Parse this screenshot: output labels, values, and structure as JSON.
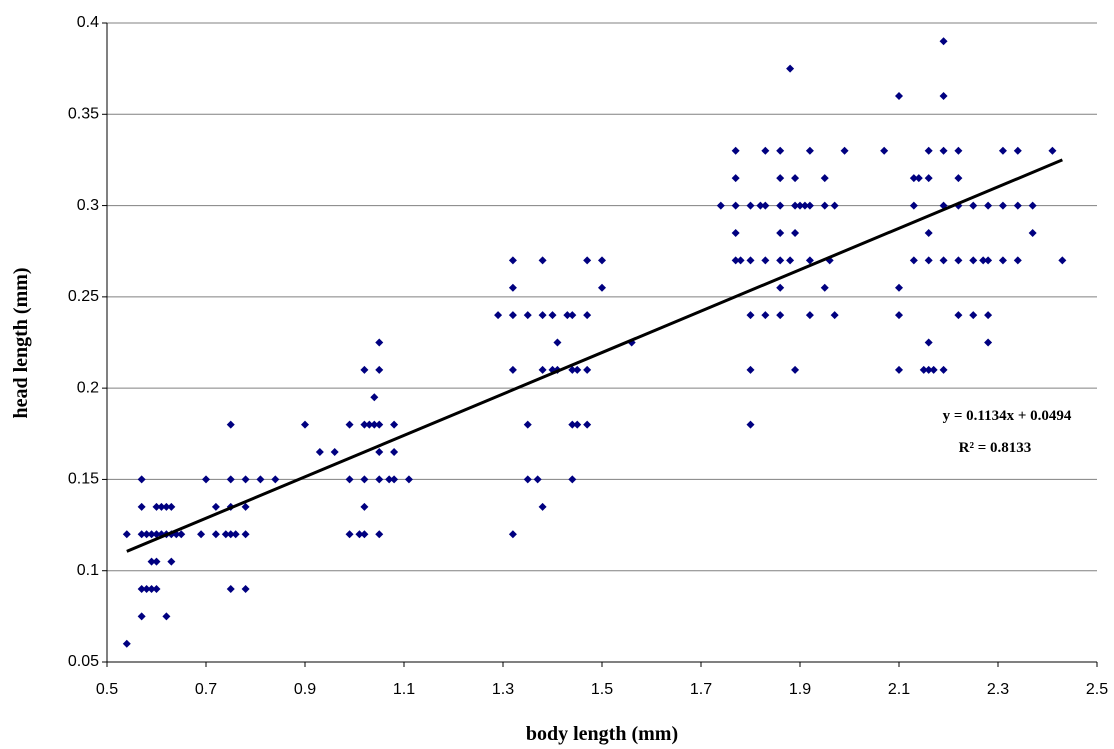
{
  "chart_data": {
    "type": "scatter",
    "x_label": "body length (mm)",
    "y_label": "head length (mm)",
    "xlim": [
      0.5,
      2.5
    ],
    "xticks": [
      0.5,
      0.7,
      0.9,
      1.1,
      1.3,
      1.5,
      1.7,
      1.9,
      2.1,
      2.3,
      2.5
    ],
    "ylim": [
      0.05,
      0.4
    ],
    "yticks": [
      0.05,
      0.1,
      0.15,
      0.2,
      0.25,
      0.3,
      0.35,
      0.4
    ],
    "grid": true,
    "series": [
      {
        "color": "#000080",
        "x": [
          0.54,
          0.54,
          0.57,
          0.57,
          0.57,
          0.57,
          0.57,
          0.58,
          0.58,
          0.59,
          0.59,
          0.59,
          0.6,
          0.6,
          0.6,
          0.6,
          0.61,
          0.61,
          0.62,
          0.62,
          0.62,
          0.63,
          0.63,
          0.63,
          0.64,
          0.65,
          0.69,
          0.7,
          0.72,
          0.72,
          0.74,
          0.75,
          0.75,
          0.75,
          0.75,
          0.75,
          0.76,
          0.78,
          0.78,
          0.78,
          0.78,
          0.81,
          0.84,
          0.9,
          0.93,
          0.96,
          0.99,
          0.99,
          0.99,
          1.01,
          1.02,
          1.02,
          1.02,
          1.02,
          1.02,
          1.03,
          1.04,
          1.04,
          1.05,
          1.05,
          1.05,
          1.05,
          1.05,
          1.05,
          1.07,
          1.08,
          1.08,
          1.08,
          1.11,
          1.29,
          1.32,
          1.32,
          1.32,
          1.32,
          1.32,
          1.35,
          1.35,
          1.35,
          1.37,
          1.38,
          1.38,
          1.38,
          1.38,
          1.4,
          1.4,
          1.41,
          1.41,
          1.43,
          1.44,
          1.44,
          1.44,
          1.44,
          1.45,
          1.45,
          1.47,
          1.47,
          1.47,
          1.47,
          1.5,
          1.5,
          1.56,
          1.74,
          1.77,
          1.77,
          1.77,
          1.77,
          1.77,
          1.78,
          1.8,
          1.8,
          1.8,
          1.8,
          1.8,
          1.82,
          1.83,
          1.83,
          1.83,
          1.83,
          1.86,
          1.86,
          1.86,
          1.86,
          1.86,
          1.86,
          1.86,
          1.88,
          1.88,
          1.89,
          1.89,
          1.89,
          1.89,
          1.9,
          1.91,
          1.92,
          1.92,
          1.92,
          1.92,
          1.95,
          1.95,
          1.95,
          1.96,
          1.97,
          1.97,
          1.99,
          2.07,
          2.1,
          2.1,
          2.1,
          2.1,
          2.13,
          2.13,
          2.13,
          2.14,
          2.15,
          2.16,
          2.16,
          2.16,
          2.16,
          2.16,
          2.16,
          2.17,
          2.19,
          2.19,
          2.19,
          2.19,
          2.19,
          2.19,
          2.22,
          2.22,
          2.22,
          2.22,
          2.22,
          2.25,
          2.25,
          2.25,
          2.27,
          2.28,
          2.28,
          2.28,
          2.28,
          2.31,
          2.31,
          2.31,
          2.34,
          2.34,
          2.34,
          2.37,
          2.37,
          2.41,
          2.43
        ],
        "values": [
          0.12,
          0.06,
          0.15,
          0.135,
          0.12,
          0.09,
          0.075,
          0.12,
          0.09,
          0.12,
          0.105,
          0.09,
          0.135,
          0.12,
          0.105,
          0.09,
          0.135,
          0.12,
          0.135,
          0.12,
          0.075,
          0.135,
          0.12,
          0.105,
          0.12,
          0.12,
          0.12,
          0.15,
          0.135,
          0.12,
          0.12,
          0.18,
          0.15,
          0.135,
          0.12,
          0.09,
          0.12,
          0.15,
          0.135,
          0.12,
          0.09,
          0.15,
          0.15,
          0.18,
          0.165,
          0.165,
          0.18,
          0.15,
          0.12,
          0.12,
          0.21,
          0.18,
          0.15,
          0.135,
          0.12,
          0.18,
          0.195,
          0.18,
          0.225,
          0.21,
          0.18,
          0.165,
          0.15,
          0.12,
          0.15,
          0.18,
          0.165,
          0.15,
          0.15,
          0.24,
          0.27,
          0.255,
          0.24,
          0.21,
          0.12,
          0.24,
          0.18,
          0.15,
          0.15,
          0.27,
          0.24,
          0.21,
          0.135,
          0.24,
          0.21,
          0.225,
          0.21,
          0.24,
          0.24,
          0.21,
          0.18,
          0.15,
          0.21,
          0.18,
          0.27,
          0.24,
          0.21,
          0.18,
          0.27,
          0.255,
          0.225,
          0.3,
          0.33,
          0.315,
          0.3,
          0.285,
          0.27,
          0.27,
          0.3,
          0.27,
          0.24,
          0.21,
          0.18,
          0.3,
          0.33,
          0.3,
          0.27,
          0.24,
          0.33,
          0.315,
          0.3,
          0.285,
          0.27,
          0.255,
          0.24,
          0.375,
          0.27,
          0.315,
          0.3,
          0.285,
          0.21,
          0.3,
          0.3,
          0.33,
          0.3,
          0.27,
          0.24,
          0.315,
          0.3,
          0.255,
          0.27,
          0.3,
          0.24,
          0.33,
          0.33,
          0.36,
          0.255,
          0.24,
          0.21,
          0.315,
          0.3,
          0.27,
          0.315,
          0.21,
          0.33,
          0.315,
          0.285,
          0.27,
          0.225,
          0.21,
          0.21,
          0.39,
          0.36,
          0.33,
          0.3,
          0.27,
          0.21,
          0.33,
          0.315,
          0.3,
          0.27,
          0.24,
          0.3,
          0.27,
          0.24,
          0.27,
          0.3,
          0.27,
          0.24,
          0.225,
          0.33,
          0.3,
          0.27,
          0.33,
          0.3,
          0.27,
          0.3,
          0.285,
          0.33,
          0.27
        ]
      }
    ],
    "trendline": {
      "color": "#000000",
      "x": [
        0.54,
        2.43
      ],
      "values": [
        0.1106,
        0.325
      ]
    },
    "annotations": [
      "y = 0.1134x + 0.0494",
      "R² = 0.8133"
    ]
  }
}
